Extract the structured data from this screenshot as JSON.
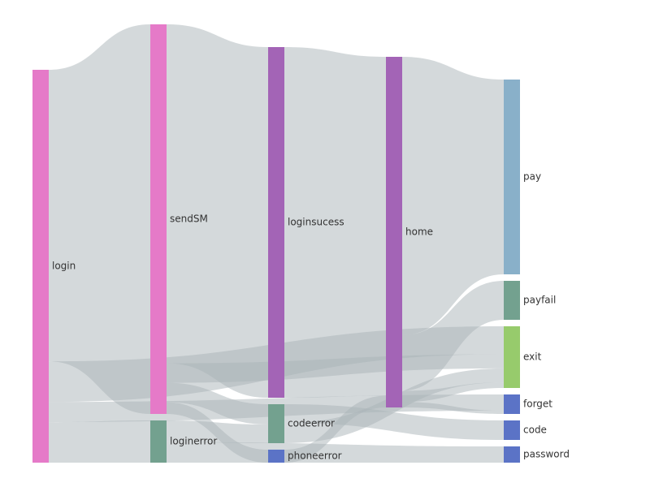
{
  "chart_data": {
    "type": "sankey",
    "nodes": [
      {
        "id": "login",
        "label": "login",
        "color": "#e57ac8"
      },
      {
        "id": "sendSM",
        "label": "sendSM",
        "color": "#e57ac8"
      },
      {
        "id": "loginerror",
        "label": "loginerror",
        "color": "#73a18f"
      },
      {
        "id": "loginsucess",
        "label": "loginsucess",
        "color": "#a364b6"
      },
      {
        "id": "codeerror",
        "label": "codeerror",
        "color": "#73a18f"
      },
      {
        "id": "phoneerror",
        "label": "phoneerror",
        "color": "#5b73c6"
      },
      {
        "id": "home",
        "label": "home",
        "color": "#a364b6"
      },
      {
        "id": "pay",
        "label": "pay",
        "color": "#89b0c9"
      },
      {
        "id": "payfail",
        "label": "payfail",
        "color": "#73a18f"
      },
      {
        "id": "exit",
        "label": "exit",
        "color": "#97cb6c"
      },
      {
        "id": "forget",
        "label": "forget",
        "color": "#5b73c6"
      },
      {
        "id": "code",
        "label": "code",
        "color": "#5b73c6"
      },
      {
        "id": "password",
        "label": "password",
        "color": "#5b73c6"
      }
    ],
    "links": [
      {
        "source": "login",
        "target": "sendSM",
        "value": 36
      },
      {
        "source": "login",
        "target": "exit",
        "value": 5
      },
      {
        "source": "login",
        "target": "forget",
        "value": 2.5
      },
      {
        "source": "login",
        "target": "loginerror",
        "value": 5
      },
      {
        "source": "sendSM",
        "target": "loginsucess",
        "value": 43.5
      },
      {
        "source": "sendSM",
        "target": "exit",
        "value": 2.5
      },
      {
        "source": "sendSM",
        "target": "codeerror",
        "value": 2.5
      },
      {
        "source": "sendSM",
        "target": "phoneerror",
        "value": 1.5
      },
      {
        "source": "loginerror",
        "target": "codeerror",
        "value": 2.3
      },
      {
        "source": "loginerror",
        "target": "password",
        "value": 2.2
      },
      {
        "source": "loginsucess",
        "target": "home",
        "value": 43.5
      },
      {
        "source": "codeerror",
        "target": "code",
        "value": 2.3
      },
      {
        "source": "codeerror",
        "target": "exit",
        "value": 2.5
      },
      {
        "source": "phoneerror",
        "target": "home",
        "value": 1.5
      },
      {
        "source": "home",
        "target": "pay",
        "value": 25
      },
      {
        "source": "home",
        "target": "payfail",
        "value": 5
      },
      {
        "source": "home",
        "target": "exit",
        "value": 1
      },
      {
        "source": "home",
        "target": "forget",
        "value": 0.5
      }
    ],
    "link_color": "#aab3b8",
    "link_opacity": 0.5
  }
}
